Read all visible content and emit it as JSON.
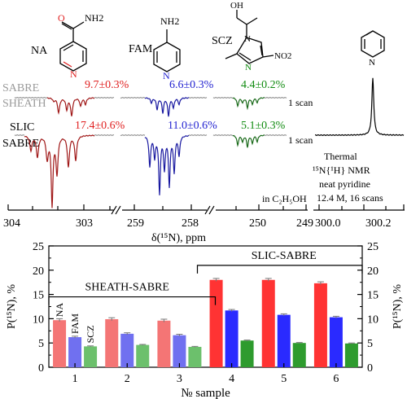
{
  "molecules": [
    {
      "label": "NA",
      "substituent": "NH2"
    },
    {
      "label": "FAM",
      "substituent": "NH2"
    },
    {
      "label": "SCZ",
      "substituent_oh": "OH",
      "substituent_no2": "NO2"
    },
    {
      "label": "",
      "substituent": ""
    }
  ],
  "spectra": {
    "rows": [
      {
        "label_lines": [
          "SABRE",
          "SHEATH"
        ],
        "scan_label": "1 scan",
        "values": [
          "9.7±0.3%",
          "6.6±0.3%",
          "4.4±0.2%"
        ]
      },
      {
        "label_lines": [
          "SLIC",
          "SABRE"
        ],
        "scan_label": "1 scan",
        "values": [
          "17.4±0.6%",
          "11.0±0.6%",
          "5.1±0.3%"
        ]
      }
    ],
    "solvent": "in C₂H₅OH",
    "thermal_lines": [
      "Thermal",
      "¹⁵N{¹H} NMR",
      "neat pyridine",
      "12.4 M, 16 scans"
    ],
    "x_ticks": [
      "304",
      "303",
      "259",
      "258",
      "250",
      "249",
      "300.0",
      "300.2"
    ],
    "x_label": "δ(¹⁵N), ppm"
  },
  "chart_data": {
    "type": "bar",
    "categories": [
      "1",
      "2",
      "3",
      "4",
      "5",
      "6"
    ],
    "series": [
      {
        "name": "NA",
        "values": [
          9.7,
          9.9,
          9.6,
          18.0,
          18.0,
          17.3
        ],
        "errors": [
          0.3,
          0.3,
          0.3,
          0.3,
          0.3,
          0.3
        ]
      },
      {
        "name": "FAM",
        "values": [
          6.2,
          6.9,
          6.6,
          11.7,
          10.8,
          10.3
        ],
        "errors": [
          0.2,
          0.2,
          0.2,
          0.2,
          0.2,
          0.2
        ]
      },
      {
        "name": "SCZ",
        "values": [
          4.3,
          4.6,
          4.2,
          5.5,
          5.0,
          4.9
        ],
        "errors": [
          0.1,
          0.1,
          0.1,
          0.1,
          0.1,
          0.1
        ]
      }
    ],
    "xlabel": "№ sample",
    "ylabel": "P(¹⁵N), %",
    "ylim": [
      0,
      25
    ],
    "yticks": [
      0,
      5,
      10,
      15,
      20,
      25
    ],
    "groups": [
      {
        "label": "SHEATH-SABRE",
        "categories": [
          "1",
          "2",
          "3"
        ]
      },
      {
        "label": "SLIC-SABRE",
        "categories": [
          "4",
          "5",
          "6"
        ]
      }
    ],
    "colors": {
      "bright": [
        "#ff3333",
        "#2a2aff",
        "#2e9b2e"
      ],
      "light": [
        "#f47575",
        "#7070f0",
        "#6cc06c"
      ]
    }
  },
  "colors": {
    "red": "#e02020",
    "blue": "#1f1fd0",
    "green": "#0f8a0f",
    "spec_red": "#a01818",
    "spec_blue": "#1818a0",
    "spec_green": "#1a6a1a",
    "gray": "#9a9a9a"
  }
}
